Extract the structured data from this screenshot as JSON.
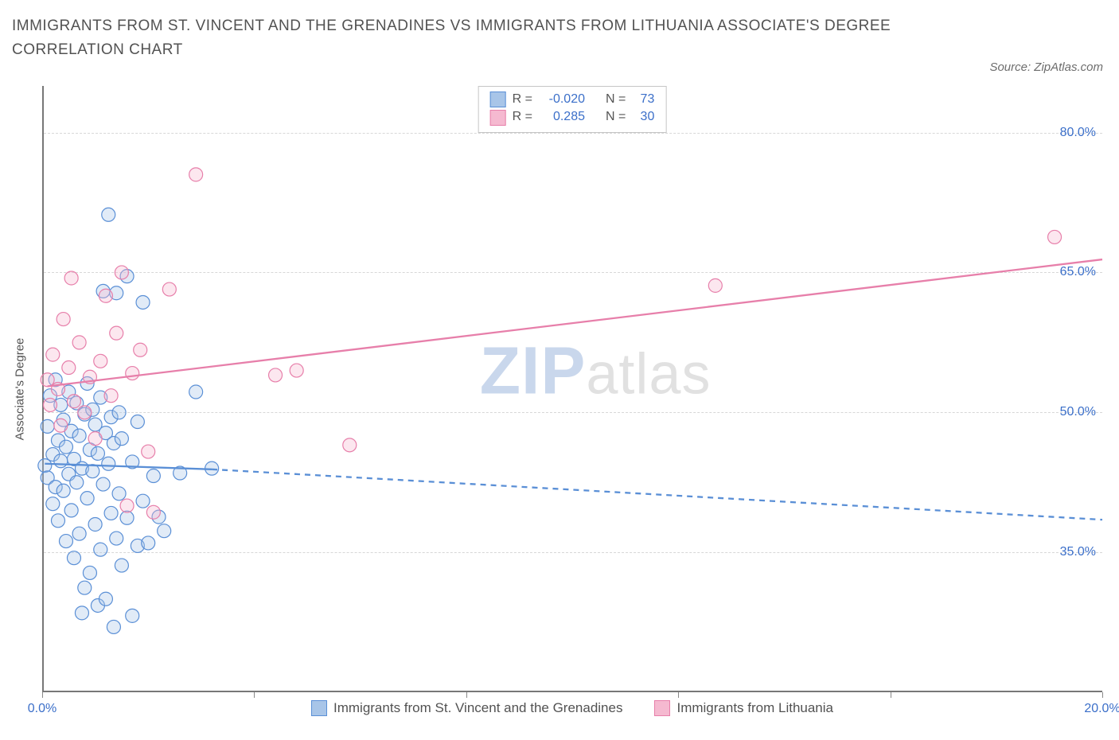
{
  "title": "IMMIGRANTS FROM ST. VINCENT AND THE GRENADINES VS IMMIGRANTS FROM LITHUANIA ASSOCIATE'S DEGREE CORRELATION CHART",
  "source_label": "Source: ZipAtlas.com",
  "watermark_1": "ZIP",
  "watermark_2": "atlas",
  "y_axis_title": "Associate's Degree",
  "chart": {
    "type": "scatter",
    "background_color": "#ffffff",
    "grid_color": "#d7d7d7",
    "axis_color": "#777777",
    "text_color": "#525252",
    "value_color": "#3b6fc9",
    "xlim": [
      0,
      20
    ],
    "ylim": [
      20,
      85
    ],
    "y_ticks": [
      35.0,
      50.0,
      65.0,
      80.0
    ],
    "y_tick_labels": [
      "35.0%",
      "50.0%",
      "65.0%",
      "80.0%"
    ],
    "x_ticks": [
      0,
      4,
      8,
      12,
      16,
      20
    ],
    "x_tick_labels": [
      "0.0%",
      "20.0%"
    ],
    "x_tick_label_positions": [
      0,
      20
    ],
    "marker_radius": 8.5,
    "marker_fill_opacity": 0.35,
    "marker_stroke_width": 1.2,
    "series": [
      {
        "name": "Immigrants from St. Vincent and the Grenadines",
        "color_stroke": "#5a8fd6",
        "color_fill": "#a8c5e8",
        "R": "-0.020",
        "N": "73",
        "points": [
          [
            0.05,
            44.3
          ],
          [
            0.1,
            43.0
          ],
          [
            0.1,
            48.5
          ],
          [
            0.15,
            51.8
          ],
          [
            0.2,
            45.5
          ],
          [
            0.2,
            40.2
          ],
          [
            0.25,
            53.5
          ],
          [
            0.25,
            42.0
          ],
          [
            0.3,
            47.0
          ],
          [
            0.3,
            38.4
          ],
          [
            0.35,
            50.8
          ],
          [
            0.35,
            44.8
          ],
          [
            0.4,
            41.6
          ],
          [
            0.4,
            49.2
          ],
          [
            0.45,
            46.3
          ],
          [
            0.45,
            36.2
          ],
          [
            0.5,
            52.2
          ],
          [
            0.5,
            43.4
          ],
          [
            0.55,
            48.0
          ],
          [
            0.55,
            39.5
          ],
          [
            0.6,
            45.0
          ],
          [
            0.6,
            34.4
          ],
          [
            0.65,
            51.0
          ],
          [
            0.65,
            42.5
          ],
          [
            0.7,
            47.5
          ],
          [
            0.7,
            37.0
          ],
          [
            0.75,
            28.5
          ],
          [
            0.75,
            44.0
          ],
          [
            0.8,
            49.8
          ],
          [
            0.8,
            31.2
          ],
          [
            0.85,
            53.1
          ],
          [
            0.85,
            40.8
          ],
          [
            0.9,
            46.0
          ],
          [
            0.9,
            32.8
          ],
          [
            0.95,
            50.3
          ],
          [
            0.95,
            43.7
          ],
          [
            1.0,
            38.0
          ],
          [
            1.0,
            48.7
          ],
          [
            1.05,
            29.3
          ],
          [
            1.05,
            45.6
          ],
          [
            1.1,
            51.6
          ],
          [
            1.1,
            35.3
          ],
          [
            1.15,
            63.0
          ],
          [
            1.15,
            42.3
          ],
          [
            1.2,
            47.8
          ],
          [
            1.2,
            30.0
          ],
          [
            1.25,
            44.5
          ],
          [
            1.25,
            71.2
          ],
          [
            1.3,
            39.2
          ],
          [
            1.3,
            49.5
          ],
          [
            1.35,
            27.0
          ],
          [
            1.35,
            46.7
          ],
          [
            1.4,
            62.8
          ],
          [
            1.4,
            36.5
          ],
          [
            1.45,
            50.0
          ],
          [
            1.45,
            41.3
          ],
          [
            1.5,
            33.6
          ],
          [
            1.5,
            47.2
          ],
          [
            1.6,
            64.6
          ],
          [
            1.6,
            38.7
          ],
          [
            1.7,
            44.7
          ],
          [
            1.7,
            28.2
          ],
          [
            1.8,
            35.7
          ],
          [
            1.8,
            49.0
          ],
          [
            1.9,
            40.5
          ],
          [
            1.9,
            61.8
          ],
          [
            2.0,
            36.0
          ],
          [
            2.1,
            43.2
          ],
          [
            2.2,
            38.8
          ],
          [
            2.3,
            37.3
          ],
          [
            2.6,
            43.5
          ],
          [
            2.9,
            52.2
          ],
          [
            3.2,
            44.0
          ]
        ],
        "trend_solid": {
          "x1": 0.05,
          "y1": 44.5,
          "x2": 3.2,
          "y2": 43.9
        },
        "trend_dash": {
          "x1": 3.2,
          "y1": 43.9,
          "x2": 20.0,
          "y2": 38.5
        }
      },
      {
        "name": "Immigrants from Lithuania",
        "color_stroke": "#e77faa",
        "color_fill": "#f5b9d0",
        "R": "0.285",
        "N": "30",
        "points": [
          [
            0.1,
            53.5
          ],
          [
            0.15,
            50.8
          ],
          [
            0.2,
            56.2
          ],
          [
            0.3,
            52.5
          ],
          [
            0.35,
            48.6
          ],
          [
            0.4,
            60.0
          ],
          [
            0.5,
            54.8
          ],
          [
            0.55,
            64.4
          ],
          [
            0.6,
            51.2
          ],
          [
            0.7,
            57.5
          ],
          [
            0.8,
            50.0
          ],
          [
            0.9,
            53.8
          ],
          [
            1.0,
            47.2
          ],
          [
            1.1,
            55.5
          ],
          [
            1.2,
            62.5
          ],
          [
            1.3,
            51.8
          ],
          [
            1.4,
            58.5
          ],
          [
            1.5,
            65.0
          ],
          [
            1.6,
            40.0
          ],
          [
            1.7,
            54.2
          ],
          [
            1.85,
            56.7
          ],
          [
            2.0,
            45.8
          ],
          [
            2.1,
            39.3
          ],
          [
            2.4,
            63.2
          ],
          [
            2.9,
            75.5
          ],
          [
            4.4,
            54.0
          ],
          [
            4.8,
            54.5
          ],
          [
            5.8,
            46.5
          ],
          [
            12.7,
            63.6
          ],
          [
            19.1,
            68.8
          ]
        ],
        "trend_solid": {
          "x1": 0.1,
          "y1": 52.8,
          "x2": 20.0,
          "y2": 66.4
        }
      }
    ]
  },
  "legend_upper_label_R": "R =",
  "legend_upper_label_N": "N =",
  "series1_label": "Immigrants from St. Vincent and the Grenadines",
  "series2_label": "Immigrants from Lithuania"
}
